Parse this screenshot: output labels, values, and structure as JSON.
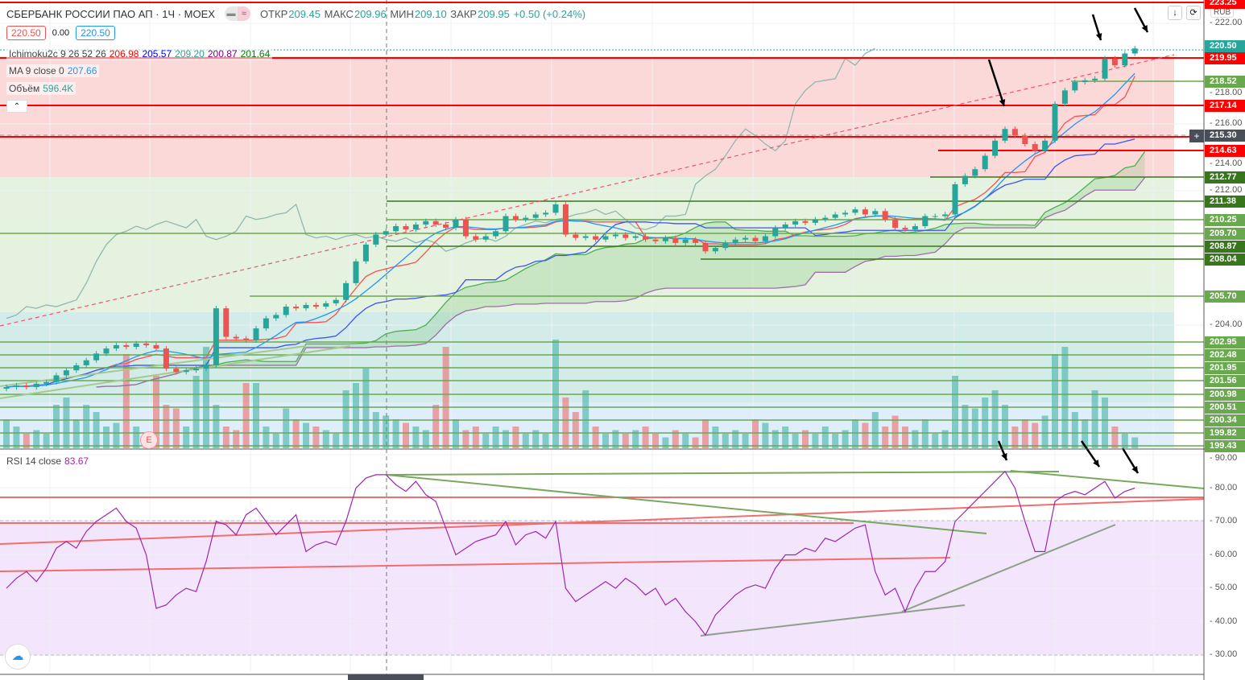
{
  "header": {
    "symbol": "СБЕРБАНК РОССИИ ПАО АП · 1Ч · MOEX",
    "open_label": "ОТКР",
    "open": "209.45",
    "high_label": "МАКС",
    "high": "209.96",
    "low_label": "МИН",
    "low": "209.10",
    "close_label": "ЗАКР",
    "close": "209.95",
    "change": "+0.50 (+0.24%)",
    "sell_price": "220.50",
    "spread": "0.00",
    "buy_price": "220.50"
  },
  "indicators": {
    "ichimoku": {
      "label": "Ichimoku2c 9 26 52 26",
      "v1": "206.98",
      "v2": "205.57",
      "v3": "209.20",
      "v4": "200.87",
      "v5": "201.64"
    },
    "ma": {
      "label": "MA 9 close 0",
      "value": "207.66"
    },
    "volume": {
      "label": "Объём",
      "value": "596.4K"
    },
    "rsi": {
      "label": "RSI 14 close",
      "value": "83.67"
    }
  },
  "axis": {
    "currency": "RUB",
    "crosshair_price": "215.30",
    "last_price": "220.50",
    "price_ticks": [
      "222.00",
      "218.00",
      "216.00",
      "214.00",
      "212.00",
      "204.00"
    ],
    "rsi_ticks": [
      "90.00",
      "80.00",
      "70.00",
      "60.00",
      "50.00",
      "40.00",
      "30.00"
    ]
  },
  "levels": [
    {
      "value": "223.25",
      "kind": "red"
    },
    {
      "value": "219.95",
      "kind": "red"
    },
    {
      "value": "218.52",
      "kind": "lightgreen"
    },
    {
      "value": "217.14",
      "kind": "red"
    },
    {
      "value": "214.63",
      "kind": "red"
    },
    {
      "value": "212.77",
      "kind": "darkgreen"
    },
    {
      "value": "211.38",
      "kind": "darkgreen"
    },
    {
      "value": "210.25",
      "kind": "lightgreen"
    },
    {
      "value": "209.70",
      "kind": "lightgreen"
    },
    {
      "value": "208.87",
      "kind": "darkgreen"
    },
    {
      "value": "208.04",
      "kind": "darkgreen"
    },
    {
      "value": "205.70",
      "kind": "lightgreen"
    },
    {
      "value": "202.95",
      "kind": "lightgreen"
    },
    {
      "value": "202.48",
      "kind": "lightgreen"
    },
    {
      "value": "201.95",
      "kind": "lightgreen"
    },
    {
      "value": "201.56",
      "kind": "lightgreen"
    },
    {
      "value": "200.98",
      "kind": "lightgreen"
    },
    {
      "value": "200.51",
      "kind": "lightgreen"
    },
    {
      "value": "200.34",
      "kind": "lightgreen"
    },
    {
      "value": "199.82",
      "kind": "lightgreen"
    },
    {
      "value": "199.43",
      "kind": "lightgreen"
    }
  ],
  "colors": {
    "up": "#26a69a",
    "down": "#ef5350",
    "red_level": "#ff0000",
    "lightgreen": "#6aa84f",
    "darkgreen": "#38761d",
    "rsi": "#9c27b0",
    "ma": "#2196f3",
    "tenkan": "#ff4d4d",
    "kijun": "#3f51f5"
  },
  "chart_data": {
    "type": "candlestick",
    "title": "СБЕРБАНК РОССИИ ПАО АП · 1Ч · MOEX",
    "ylim": [
      199,
      223.5
    ],
    "close": [
      200.3,
      200.4,
      200.3,
      200.5,
      200.6,
      201.0,
      201.3,
      201.6,
      201.9,
      202.3,
      202.6,
      202.8,
      202.7,
      202.9,
      202.8,
      202.6,
      201.4,
      201.2,
      201.3,
      201.4,
      201.6,
      205.0,
      203.3,
      203.2,
      203.1,
      203.8,
      204.4,
      204.6,
      205.1,
      205.0,
      205.2,
      205.1,
      205.3,
      205.5,
      206.5,
      207.8,
      208.8,
      209.4,
      209.6,
      209.9,
      209.7,
      210.0,
      210.2,
      210.0,
      209.8,
      210.3,
      209.3,
      209.1,
      209.3,
      209.6,
      210.5,
      210.3,
      210.4,
      210.6,
      210.7,
      211.2,
      209.4,
      209.2,
      209.3,
      209.1,
      209.3,
      209.4,
      209.2,
      209.3,
      209.1,
      209.0,
      209.2,
      208.9,
      209.1,
      208.9,
      208.4,
      208.6,
      208.9,
      209.1,
      209.2,
      209.0,
      209.3,
      209.8,
      210.0,
      210.2,
      210.1,
      210.3,
      210.4,
      210.6,
      210.7,
      210.9,
      210.6,
      210.8,
      210.3,
      209.8,
      209.7,
      209.9,
      210.5,
      210.5,
      210.6,
      212.4,
      212.9,
      213.3,
      214.1,
      215.0,
      215.7,
      215.3,
      214.8,
      214.4,
      215.0,
      217.2,
      218.0,
      218.5,
      218.6,
      218.7,
      219.9,
      219.5,
      220.2,
      220.5
    ],
    "volume_k": [
      40,
      30,
      20,
      25,
      20,
      60,
      70,
      40,
      60,
      50,
      30,
      35,
      130,
      30,
      20,
      100,
      60,
      55,
      30,
      100,
      140,
      60,
      30,
      25,
      90,
      90,
      30,
      20,
      55,
      40,
      35,
      30,
      25,
      20,
      80,
      90,
      110,
      50,
      45,
      40,
      35,
      30,
      25,
      60,
      140,
      40,
      25,
      30,
      20,
      30,
      25,
      30,
      20,
      25,
      20,
      150,
      70,
      50,
      80,
      30,
      20,
      25,
      20,
      25,
      30,
      20,
      15,
      25,
      20,
      15,
      40,
      30,
      20,
      25,
      20,
      40,
      35,
      25,
      30,
      20,
      25,
      20,
      30,
      20,
      25,
      40,
      35,
      50,
      30,
      45,
      30,
      25,
      40,
      20,
      25,
      100,
      60,
      55,
      70,
      80,
      60,
      30,
      40,
      35,
      45,
      130,
      140,
      50,
      40,
      80,
      70,
      30,
      20,
      15
    ],
    "rsi": [
      50,
      53,
      55,
      52,
      56,
      62,
      64,
      62,
      67,
      70,
      72,
      74,
      70,
      68,
      60,
      44,
      45,
      48,
      50,
      49,
      58,
      70,
      69,
      66,
      72,
      74,
      70,
      66,
      69,
      72,
      61,
      63,
      64,
      63,
      70,
      80,
      83,
      84,
      84,
      81,
      79,
      82,
      78,
      76,
      68,
      60,
      62,
      64,
      65,
      66,
      70,
      63,
      66,
      67,
      65,
      70,
      50,
      46,
      48,
      50,
      52,
      50,
      53,
      51,
      48,
      50,
      45,
      47,
      43,
      40,
      36,
      42,
      45,
      48,
      50,
      51,
      50,
      56,
      60,
      60,
      62,
      61,
      65,
      64,
      66,
      68,
      69,
      55,
      48,
      50,
      43,
      50,
      55,
      55,
      58,
      70,
      73,
      76,
      79,
      82,
      85,
      80,
      70,
      61,
      61,
      76,
      78,
      79,
      78,
      80,
      82,
      77,
      79,
      80
    ],
    "rsi_ylim": [
      30,
      90
    ]
  }
}
